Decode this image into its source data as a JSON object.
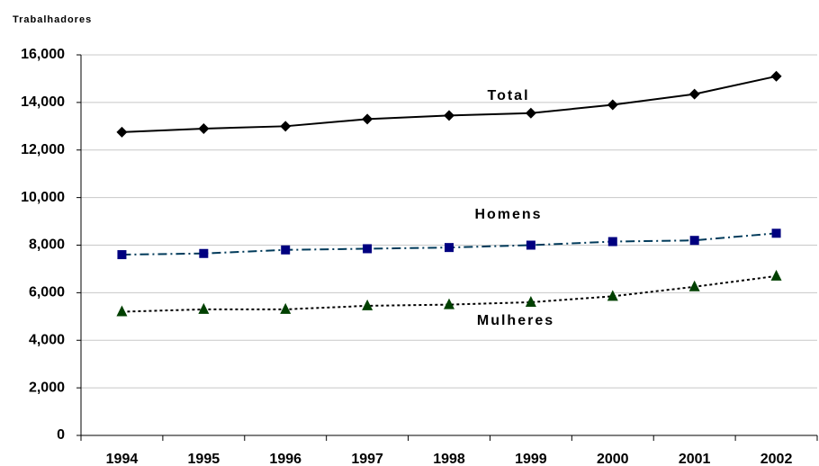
{
  "chart_data": {
    "type": "line",
    "y_label": "Trabalhadores",
    "categories": [
      "1994",
      "1995",
      "1996",
      "1997",
      "1998",
      "1999",
      "2000",
      "2001",
      "2002"
    ],
    "series": [
      {
        "name": "Total",
        "color": "#000000",
        "line_color": "#000000",
        "marker": "diamond",
        "dash": "solid",
        "values": [
          12750,
          12900,
          13000,
          13300,
          13450,
          13550,
          13900,
          14350,
          15100
        ]
      },
      {
        "name": "Homens",
        "color": "#000080",
        "line_color": "#003a5a",
        "marker": "square",
        "dash": "dashdot",
        "values": [
          7600,
          7650,
          7800,
          7850,
          7900,
          8000,
          8150,
          8200,
          8500
        ]
      },
      {
        "name": "Mulheres",
        "color": "#004000",
        "line_color": "#000000",
        "marker": "triangle",
        "dash": "dotted",
        "values": [
          5200,
          5300,
          5300,
          5450,
          5500,
          5600,
          5850,
          6250,
          6700
        ]
      }
    ],
    "ylim": [
      0,
      16000
    ],
    "yticks": [
      0,
      {
        "value": 2000,
        "label": "2,000"
      },
      {
        "value": 4000,
        "label": "4,000"
      },
      {
        "value": 6000,
        "label": "6,000"
      },
      {
        "value": 8000,
        "label": "8,000"
      },
      {
        "value": 10000,
        "label": "10,000"
      },
      {
        "value": 12000,
        "label": "12,000"
      },
      {
        "value": 14000,
        "label": "14,000"
      },
      {
        "value": 16000,
        "label": "16,000"
      }
    ],
    "grid": true
  }
}
